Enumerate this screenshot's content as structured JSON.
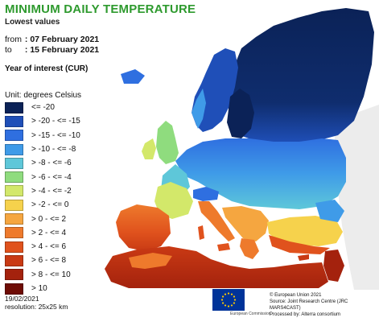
{
  "header": {
    "title": "MINIMUM DAILY TEMPERATURE",
    "subtitle": "Lowest values",
    "from_label": "from",
    "from_value": ": 07 February 2021",
    "to_label": "to",
    "to_value": ": 15 February 2021",
    "year_of_interest": "Year of interest (CUR)"
  },
  "legend": {
    "unit": "Unit: degrees Celsius",
    "classes": [
      {
        "label": "<= -20",
        "color": "#0b2257"
      },
      {
        "label": "> -20 - <= -15",
        "color": "#1f4fb8"
      },
      {
        "label": "> -15 - <= -10",
        "color": "#2f6fe0"
      },
      {
        "label": "> -10 - <= -8",
        "color": "#3f9be8"
      },
      {
        "label": "> -8 - <= -6",
        "color": "#5ec7d9"
      },
      {
        "label": "> -6 - <= -4",
        "color": "#8fdc7e"
      },
      {
        "label": "> -4 - <= -2",
        "color": "#d3e86a"
      },
      {
        "label": "> -2 - <= 0",
        "color": "#f6d24c"
      },
      {
        "label": "> 0 - <= 2",
        "color": "#f5a640"
      },
      {
        "label": "> 2 - <= 4",
        "color": "#ee7a2c"
      },
      {
        "label": "> 4 - <= 6",
        "color": "#e0521d"
      },
      {
        "label": "> 6 - <= 8",
        "color": "#c93a14"
      },
      {
        "label": "> 8 - <= 10",
        "color": "#a4220d"
      },
      {
        "label": "> 10",
        "color": "#6e0c05"
      }
    ]
  },
  "footer": {
    "date": "19/02/2021",
    "resolution": "resolution: 25x25 km",
    "eu_logo_text": "European Commission",
    "copyright": "© European Union 2021",
    "source": "Source: Joint Research Centre (JRC MARS4CAST)",
    "processed": "Processed by: Alterra consortium"
  },
  "colors": {
    "sea": "#ffffff",
    "outside": "#ececec",
    "border": "#9a9a9a",
    "title": "#2e9a2e",
    "eu_blue": "#003399",
    "eu_star": "#ffcc00"
  }
}
